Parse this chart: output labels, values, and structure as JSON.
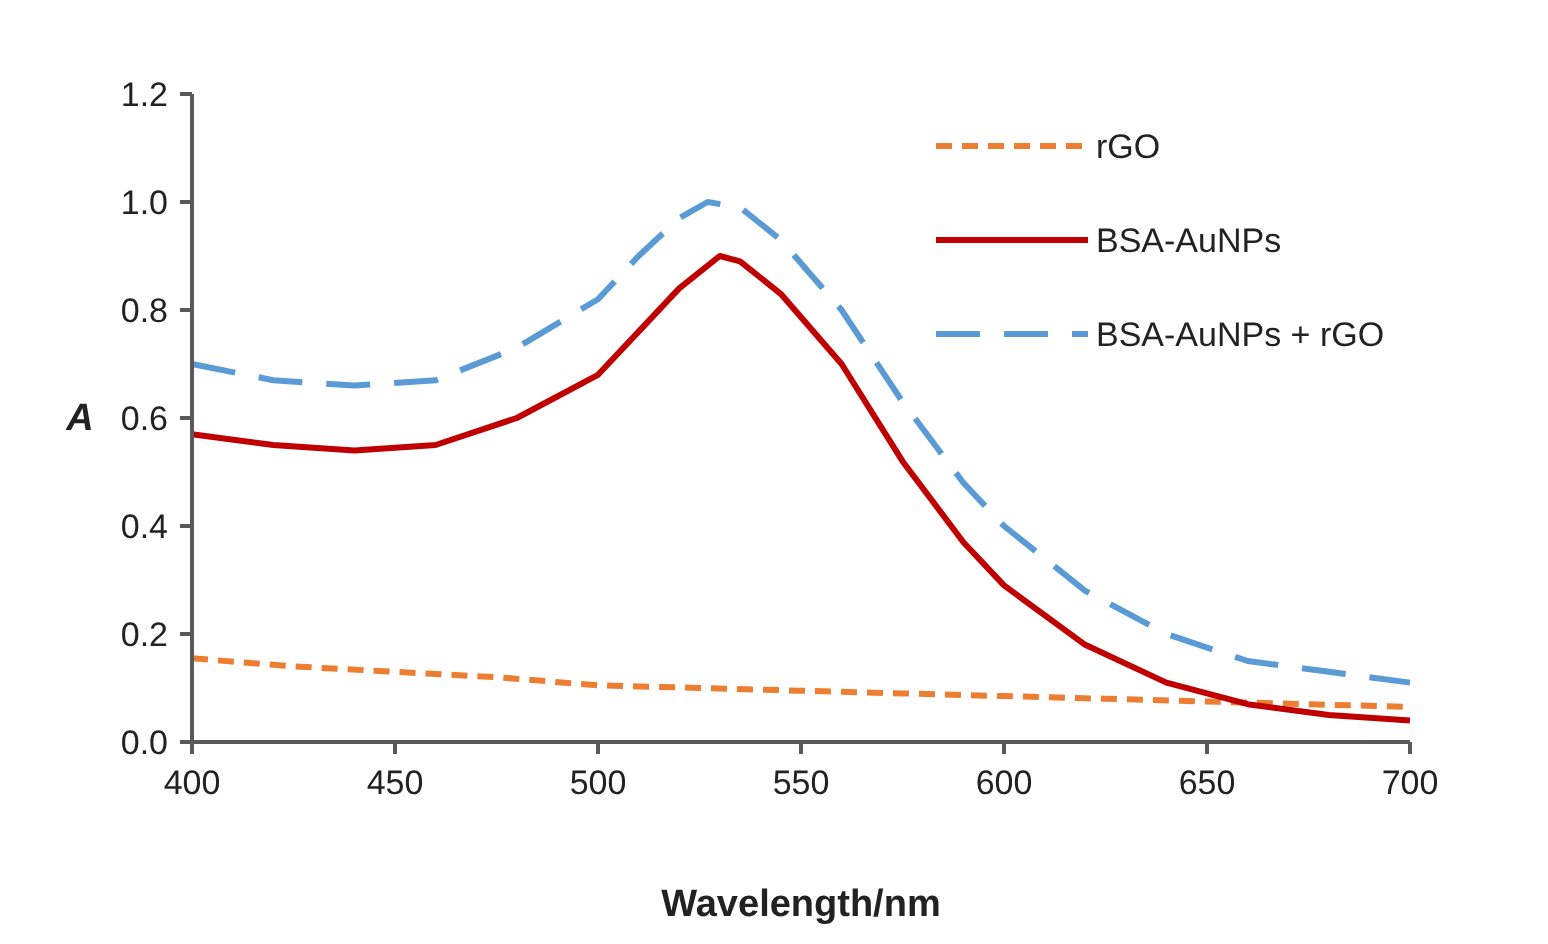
{
  "chart_data": {
    "type": "line",
    "xlabel": "Wavelength/nm",
    "ylabel": "A",
    "xlim": [
      400,
      700
    ],
    "xticks": [
      400,
      450,
      500,
      550,
      600,
      650,
      700
    ],
    "ylim": [
      0,
      1.2
    ],
    "yticks": [
      {
        "value": 0,
        "label": "0.0"
      },
      {
        "value": 0.2,
        "label": "0.2"
      },
      {
        "value": 0.4,
        "label": "0.4"
      },
      {
        "value": 0.6,
        "label": "0.6"
      },
      {
        "value": 0.8,
        "label": "0.8"
      },
      {
        "value": 1.0,
        "label": "1.0"
      },
      {
        "value": 1.2,
        "label": "1.2"
      }
    ],
    "grid": false,
    "legend": "top right",
    "series": [
      {
        "name": "rGO",
        "color": "#ed7d31",
        "line_style": "dotted",
        "x": [
          400,
          425,
          450,
          475,
          500,
          525,
          550,
          575,
          600,
          625,
          650,
          675,
          700
        ],
        "values": [
          0.155,
          0.14,
          0.13,
          0.12,
          0.105,
          0.1,
          0.095,
          0.09,
          0.085,
          0.08,
          0.075,
          0.07,
          0.065
        ]
      },
      {
        "name": "BSA-AuNPs",
        "color": "#c00000",
        "line_style": "solid",
        "x": [
          400,
          420,
          440,
          460,
          480,
          500,
          510,
          520,
          530,
          535,
          545,
          560,
          575,
          590,
          600,
          620,
          640,
          660,
          680,
          700
        ],
        "values": [
          0.57,
          0.55,
          0.54,
          0.55,
          0.6,
          0.68,
          0.76,
          0.84,
          0.9,
          0.89,
          0.83,
          0.7,
          0.52,
          0.37,
          0.29,
          0.18,
          0.11,
          0.07,
          0.05,
          0.04
        ]
      },
      {
        "name": "BSA-AuNPs + rGO",
        "color": "#5b9bd5",
        "line_style": "dashed",
        "x": [
          400,
          420,
          440,
          460,
          480,
          500,
          510,
          520,
          527,
          535,
          545,
          560,
          575,
          590,
          600,
          620,
          640,
          660,
          680,
          700
        ],
        "values": [
          0.7,
          0.67,
          0.66,
          0.67,
          0.73,
          0.82,
          0.9,
          0.97,
          1.0,
          0.99,
          0.93,
          0.8,
          0.63,
          0.48,
          0.4,
          0.28,
          0.2,
          0.15,
          0.13,
          0.11
        ]
      }
    ]
  }
}
